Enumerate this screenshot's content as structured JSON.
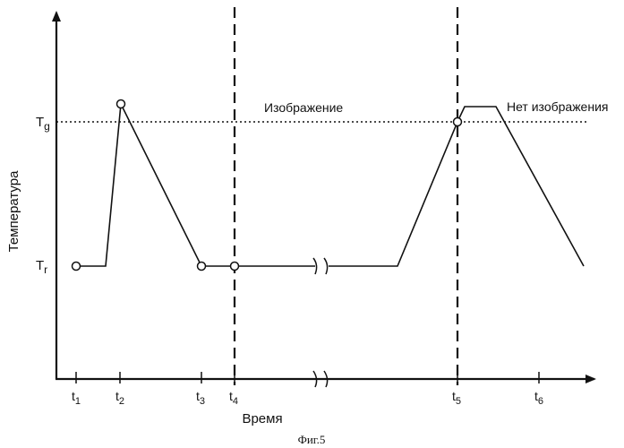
{
  "figure": {
    "caption": "Фиг.5",
    "axis_labels": {
      "y": "Температура",
      "x": "Время"
    },
    "y_levels": [
      {
        "id": "Tg",
        "main": "T",
        "sub": "g"
      },
      {
        "id": "Tr",
        "main": "T",
        "sub": "r"
      }
    ],
    "x_ticks": [
      {
        "main": "t",
        "sub": "1"
      },
      {
        "main": "t",
        "sub": "2"
      },
      {
        "main": "t",
        "sub": "3"
      },
      {
        "main": "t",
        "sub": "4"
      },
      {
        "main": "t",
        "sub": "5"
      },
      {
        "main": "t",
        "sub": "6"
      }
    ],
    "region_labels": {
      "image": "Изображение",
      "no_image": "Нет изображения"
    },
    "colors": {
      "ink": "#111111",
      "background": "#ffffff"
    }
  }
}
